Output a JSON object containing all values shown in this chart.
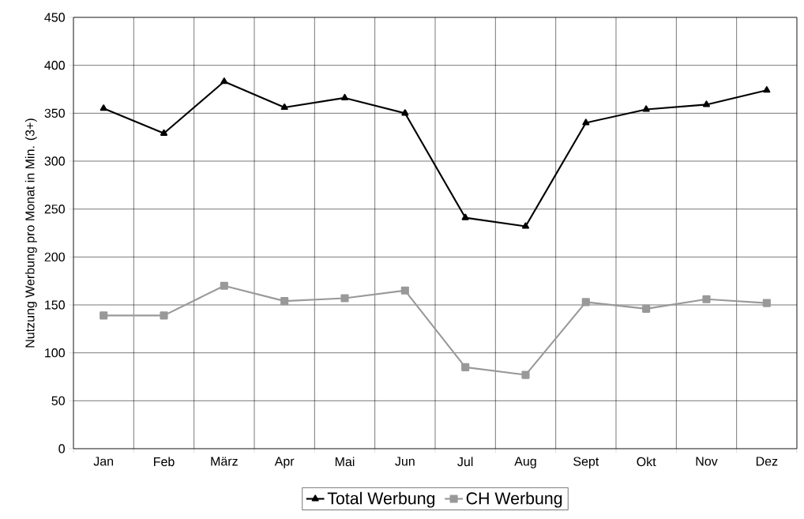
{
  "chart_data": {
    "type": "line",
    "ylabel": "Nutzung Werbung pro Monat in Min. (3+)",
    "categories": [
      "Jan",
      "Feb",
      "März",
      "Apr",
      "Mai",
      "Jun",
      "Jul",
      "Aug",
      "Sept",
      "Okt",
      "Nov",
      "Dez"
    ],
    "series": [
      {
        "name": "Total Werbung",
        "color": "#000000",
        "marker": "triangle",
        "values": [
          355,
          329,
          383,
          356,
          366,
          350,
          241,
          232,
          340,
          354,
          359,
          374
        ]
      },
      {
        "name": "CH Werbung",
        "color": "#999999",
        "marker": "square",
        "values": [
          139,
          139,
          170,
          154,
          157,
          165,
          85,
          77,
          153,
          146,
          156,
          152
        ]
      }
    ],
    "ylim": [
      0,
      450
    ],
    "yticks": [
      0,
      50,
      100,
      150,
      200,
      250,
      300,
      350,
      400,
      450
    ],
    "grid": true,
    "legend": "bottom",
    "line_style": "solid"
  }
}
